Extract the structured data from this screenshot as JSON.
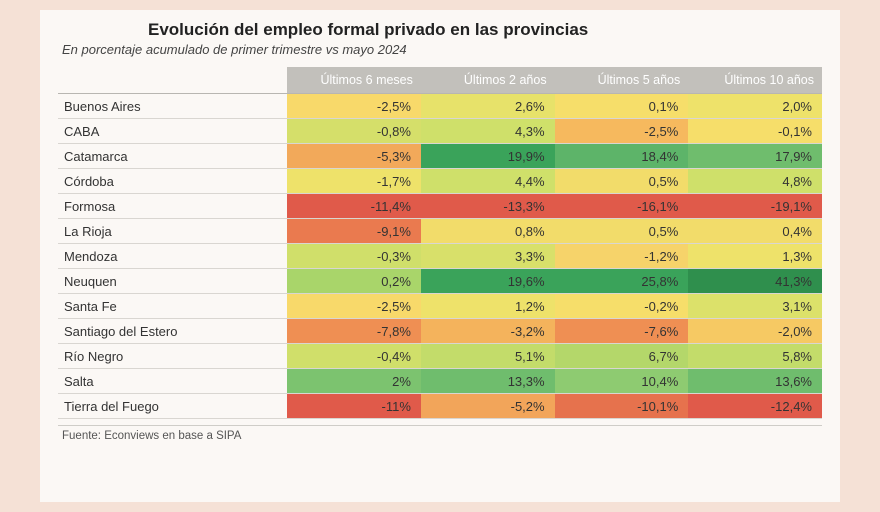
{
  "title": "Evolución del empleo formal privado en las provincias",
  "subtitle": "En porcentaje acumulado de primer trimestre vs mayo 2024",
  "source": "Fuente: Econviews en base a SIPA",
  "table": {
    "type": "heatmap-table",
    "title_fontsize": 17,
    "subtitle_fontsize": 13,
    "cell_fontsize": 13,
    "header_bg": "#c2c0bb",
    "header_fg": "#ffffff",
    "page_bg": "#f5e1d6",
    "panel_bg": "#fbf8f5",
    "border_color": "#d9d6d1",
    "col_name_width_pct": 30,
    "col_val_width_pct": 17.5,
    "columns": [
      "",
      "Últimos 6 meses",
      "Últimos 2 años",
      "Últimos 5 años",
      "Últimos 10 años"
    ],
    "rows": [
      {
        "name": "Buenos Aires",
        "cells": [
          {
            "v": "-2,5%",
            "c": "#f8d96a"
          },
          {
            "v": "2,6%",
            "c": "#e7e26a"
          },
          {
            "v": "0,1%",
            "c": "#f6de6a"
          },
          {
            "v": "2,0%",
            "c": "#eee26a"
          }
        ]
      },
      {
        "name": "CABA",
        "cells": [
          {
            "v": "-0,8%",
            "c": "#d5df6a"
          },
          {
            "v": "4,3%",
            "c": "#cfe06a"
          },
          {
            "v": "-2,5%",
            "c": "#f6b95e"
          },
          {
            "v": "-0,1%",
            "c": "#f6de6a"
          }
        ]
      },
      {
        "name": "Catamarca",
        "cells": [
          {
            "v": "-5,3%",
            "c": "#f2a95a"
          },
          {
            "v": "19,9%",
            "c": "#3aa35a"
          },
          {
            "v": "18,4%",
            "c": "#5db469"
          },
          {
            "v": "17,9%",
            "c": "#6fbd6d"
          }
        ]
      },
      {
        "name": "Córdoba",
        "cells": [
          {
            "v": "-1,7%",
            "c": "#eee26a"
          },
          {
            "v": "4,4%",
            "c": "#cfe06a"
          },
          {
            "v": "0,5%",
            "c": "#f2dc6a"
          },
          {
            "v": "4,8%",
            "c": "#cfe06a"
          }
        ]
      },
      {
        "name": "Formosa",
        "cells": [
          {
            "v": "-11,4%",
            "c": "#e05a4a"
          },
          {
            "v": "-13,3%",
            "c": "#e05a4a"
          },
          {
            "v": "-16,1%",
            "c": "#e05a4a"
          },
          {
            "v": "-19,1%",
            "c": "#e05a4a"
          }
        ]
      },
      {
        "name": "La Rioja",
        "cells": [
          {
            "v": "-9,1%",
            "c": "#ea7a4f"
          },
          {
            "v": "0,8%",
            "c": "#f2dc6a"
          },
          {
            "v": "0,5%",
            "c": "#f2dc6a"
          },
          {
            "v": "0,4%",
            "c": "#f2dc6a"
          }
        ]
      },
      {
        "name": "Mendoza",
        "cells": [
          {
            "v": "-0,3%",
            "c": "#d0df6a"
          },
          {
            "v": "3,3%",
            "c": "#d8e06a"
          },
          {
            "v": "-1,2%",
            "c": "#f6d36a"
          },
          {
            "v": "1,3%",
            "c": "#eee26a"
          }
        ]
      },
      {
        "name": "Neuquen",
        "cells": [
          {
            "v": "0,2%",
            "c": "#a9d56a"
          },
          {
            "v": "19,6%",
            "c": "#3aa35a"
          },
          {
            "v": "25,8%",
            "c": "#3aa35a"
          },
          {
            "v": "41,3%",
            "c": "#2f8f4d"
          }
        ]
      },
      {
        "name": "Santa Fe",
        "cells": [
          {
            "v": "-2,5%",
            "c": "#f8d96a"
          },
          {
            "v": "1,2%",
            "c": "#eee26a"
          },
          {
            "v": "-0,2%",
            "c": "#f6de6a"
          },
          {
            "v": "3,1%",
            "c": "#dce16a"
          }
        ]
      },
      {
        "name": "Santiago del Estero",
        "cells": [
          {
            "v": "-7,8%",
            "c": "#ef8f53"
          },
          {
            "v": "-3,2%",
            "c": "#f4b35c"
          },
          {
            "v": "-7,6%",
            "c": "#ef8f53"
          },
          {
            "v": "-2,0%",
            "c": "#f6c963"
          }
        ]
      },
      {
        "name": "Río Negro",
        "cells": [
          {
            "v": "-0,4%",
            "c": "#d0df6a"
          },
          {
            "v": "5,1%",
            "c": "#c3dc6a"
          },
          {
            "v": "6,7%",
            "c": "#b4d76a"
          },
          {
            "v": "5,8%",
            "c": "#c3dc6a"
          }
        ]
      },
      {
        "name": "Salta",
        "cells": [
          {
            "v": "2%",
            "c": "#7cc36f"
          },
          {
            "v": "13,3%",
            "c": "#6fbd6d"
          },
          {
            "v": "10,4%",
            "c": "#8ecb71"
          },
          {
            "v": "13,6%",
            "c": "#6fbd6d"
          }
        ]
      },
      {
        "name": "Tierra del Fuego",
        "cells": [
          {
            "v": "-11%",
            "c": "#e05a4a"
          },
          {
            "v": "-5,2%",
            "c": "#f2a55a"
          },
          {
            "v": "-10,1%",
            "c": "#e6724d"
          },
          {
            "v": "-12,4%",
            "c": "#e05a4a"
          }
        ]
      }
    ]
  }
}
